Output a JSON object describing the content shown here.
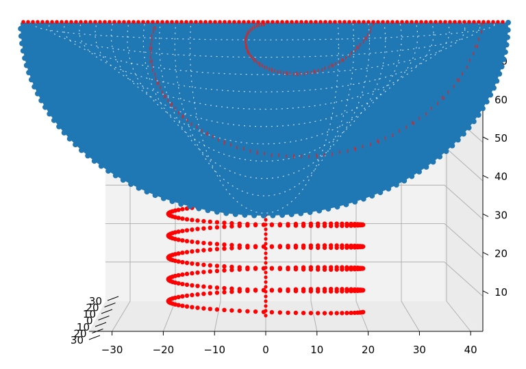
{
  "chart_data": {
    "type": "scatter",
    "projection": "3d",
    "title": "",
    "xlabel": "",
    "ylabel": "",
    "zlabel": "",
    "xlim": [
      -34,
      42
    ],
    "zlim": [
      1,
      72
    ],
    "x_ticks": [
      "−30",
      "−20",
      "−10",
      "0",
      "10",
      "20",
      "30",
      "40"
    ],
    "y_ticks": [
      "30",
      "20",
      "10",
      "0",
      "10",
      "20",
      "30"
    ],
    "z_ticks": [
      "10",
      "20",
      "30",
      "40",
      "50",
      "60",
      "70"
    ],
    "grid": true,
    "series": [
      {
        "color": "#ff0000",
        "shape": "helix",
        "center_x": 0,
        "radius": 18,
        "z_range": [
          2,
          70
        ],
        "turns": 12
      },
      {
        "color": "#1f77b4",
        "shape": "bowl",
        "center_x": 0,
        "radius": 47,
        "z_range": [
          32,
          70
        ]
      }
    ]
  }
}
